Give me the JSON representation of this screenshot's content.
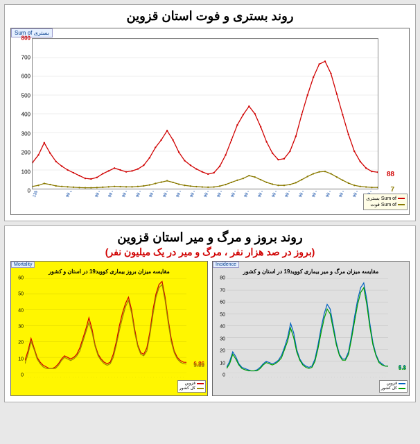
{
  "top_chart": {
    "title": "روند بستری و فوت استان قزوین",
    "tab_label": "Sum of بستری",
    "type": "line",
    "background_color": "#ffffff",
    "border_color": "#888888",
    "y_axis": {
      "min": 0,
      "max": 800,
      "step": 100,
      "label_color": "#c00000",
      "max_label": "800"
    },
    "series": [
      {
        "name": "بستری",
        "legend_label": "Sum of بستری",
        "color": "#d00000",
        "marker": "dot",
        "end_value": 88,
        "end_label": "88",
        "end_label_color": "#d00000",
        "values": [
          140,
          180,
          245,
          190,
          145,
          120,
          100,
          85,
          70,
          55,
          52,
          60,
          80,
          95,
          110,
          100,
          90,
          95,
          105,
          125,
          165,
          220,
          260,
          310,
          260,
          195,
          150,
          125,
          105,
          90,
          78,
          85,
          120,
          180,
          260,
          340,
          395,
          440,
          400,
          330,
          250,
          190,
          155,
          160,
          200,
          280,
          395,
          500,
          595,
          665,
          680,
          615,
          505,
          395,
          290,
          200,
          145,
          110,
          92,
          88
        ]
      },
      {
        "name": "فوت",
        "legend_label": "Sum of فوت",
        "color": "#8a7a00",
        "marker": "dot",
        "end_value": 7,
        "end_label": "7",
        "end_label_color": "#8a7a00",
        "values": [
          12,
          18,
          28,
          22,
          15,
          12,
          10,
          8,
          6,
          5,
          5,
          6,
          8,
          10,
          12,
          11,
          10,
          10,
          12,
          15,
          20,
          28,
          35,
          42,
          34,
          24,
          18,
          14,
          11,
          9,
          8,
          9,
          14,
          22,
          34,
          45,
          55,
          70,
          62,
          48,
          34,
          24,
          18,
          18,
          22,
          32,
          48,
          65,
          80,
          90,
          92,
          80,
          62,
          45,
          30,
          18,
          12,
          9,
          7,
          7
        ]
      }
    ],
    "x_categories": [
      "هفته 5 اسفند 1398",
      "هفته فروردین 99",
      "هفته 99",
      "هفته 99",
      "هفته 99",
      "هفته 99",
      "هفته 99",
      "هفته 99",
      "هفته 99",
      "هفته 99",
      "هفته 99",
      "هفته 99",
      "هفته 99",
      "هفته 99",
      "هفته 99",
      "هفته 99",
      "هفته 99",
      "هفته 99",
      "هفته 99",
      "هفته 99",
      "هفته 99",
      "هفته 99",
      "هفته 99",
      "هفته 99",
      "هفته 99",
      "هفته 99",
      "هفته 99",
      "هفته 99",
      "هفته 99",
      "هفته 99",
      "هفته 99",
      "هفته 99",
      "هفته 1400",
      "هفته 1400",
      "هفته 1400",
      "هفته 1400",
      "هفته 1400",
      "هفته 1400",
      "هفته 1400",
      "هفته 1400",
      "هفته 1400",
      "هفته 1400",
      "هفته 1400",
      "هفته 1400",
      "هفته 1400",
      "هفته 1400",
      "هفته 1400",
      "هفته 1400",
      "هفته 1400",
      "هفته 1400",
      "هفته 1400",
      "هفته 1400",
      "هفته 1400",
      "هفته 1400",
      "هفته 1400",
      "هفته 1400",
      "هفته 1400",
      "هفته 1400",
      "هفته آبان 1400",
      "هفته 2 آبان 1400"
    ],
    "x_label_color": "#0040a0",
    "legend_background": "#fffde6"
  },
  "bottom_section": {
    "title": "روند بروز و مرگ و میر استان قزوین",
    "subtitle": "(بروز در صد هزار نفر ، مرگ و میر در یک میلیون نفر)"
  },
  "bottom_left": {
    "tab_label": "Mortality",
    "title": "مقایسه میزان بروز بیماری کووید19 در استان و کشور",
    "background_color": "#fff600",
    "type": "line",
    "y_axis": {
      "min": 0,
      "max": 60,
      "step": 10
    },
    "series": [
      {
        "name": "قزوین",
        "color": "#d00000",
        "end_value": 6.86,
        "end_label": "6.86",
        "values": [
          8,
          14,
          22,
          16,
          10,
          7,
          5,
          4,
          3,
          3,
          4,
          6,
          9,
          11,
          10,
          9,
          10,
          12,
          16,
          22,
          28,
          35,
          28,
          18,
          12,
          9,
          7,
          6,
          7,
          12,
          20,
          30,
          38,
          44,
          48,
          40,
          28,
          18,
          13,
          12,
          16,
          26,
          40,
          50,
          56,
          58,
          48,
          34,
          22,
          14,
          10,
          8,
          7,
          6.86
        ]
      },
      {
        "name": "کل کشور",
        "color": "#9a8a00",
        "end_value": 5.83,
        "end_label": "5.83",
        "values": [
          6,
          12,
          20,
          15,
          9,
          6,
          4,
          3,
          3,
          3,
          3,
          5,
          8,
          10,
          9,
          8,
          9,
          11,
          14,
          20,
          26,
          32,
          26,
          17,
          11,
          8,
          6,
          5,
          6,
          10,
          18,
          27,
          35,
          42,
          46,
          38,
          26,
          17,
          12,
          11,
          14,
          24,
          37,
          48,
          54,
          56,
          46,
          32,
          20,
          13,
          9,
          7,
          6,
          5.83
        ]
      }
    ],
    "x_categories": [
      "",
      "",
      "",
      "",
      "",
      "",
      "",
      "",
      "",
      "",
      "",
      "",
      "",
      "",
      "",
      "",
      "",
      "",
      "",
      "",
      "",
      "",
      "",
      "",
      "",
      "",
      "",
      "",
      "",
      "",
      "",
      "",
      "",
      "",
      "",
      "",
      "",
      "",
      "",
      "",
      "",
      "",
      "",
      "",
      "",
      "",
      "",
      "",
      "",
      "",
      "",
      "",
      "",
      ""
    ],
    "legend_background": "#ffffff"
  },
  "bottom_right": {
    "tab_label": "Incidence",
    "title": "مقایسه میزان مرگ و میر بیماری کووید19 در استان و کشور",
    "background_color": "#e0e0e0",
    "type": "line",
    "y_axis": {
      "min": 0,
      "max": 80,
      "step": 10
    },
    "series": [
      {
        "name": "قزوین",
        "color": "#0060c0",
        "end_value": 6.1,
        "end_label": "6.1",
        "values": [
          5,
          10,
          18,
          14,
          8,
          5,
          4,
          3,
          2,
          2,
          3,
          5,
          8,
          10,
          9,
          8,
          9,
          11,
          15,
          22,
          30,
          42,
          34,
          20,
          12,
          8,
          6,
          5,
          6,
          12,
          24,
          38,
          50,
          58,
          54,
          40,
          26,
          16,
          12,
          12,
          18,
          32,
          48,
          62,
          72,
          76,
          62,
          42,
          26,
          16,
          10,
          8,
          6,
          6.1
        ]
      },
      {
        "name": "کل کشور",
        "color": "#00a000",
        "end_value": 5.8,
        "end_label": "5.8",
        "values": [
          4,
          8,
          16,
          12,
          7,
          4,
          3,
          2,
          2,
          2,
          2,
          4,
          7,
          9,
          8,
          7,
          8,
          10,
          13,
          20,
          27,
          38,
          30,
          18,
          11,
          7,
          5,
          4,
          5,
          10,
          21,
          34,
          46,
          54,
          50,
          37,
          24,
          15,
          11,
          11,
          16,
          29,
          44,
          58,
          68,
          72,
          58,
          39,
          24,
          15,
          9,
          7,
          6,
          5.8
        ]
      }
    ],
    "x_categories": [
      "",
      "",
      "",
      "",
      "",
      "",
      "",
      "",
      "",
      "",
      "",
      "",
      "",
      "",
      "",
      "",
      "",
      "",
      "",
      "",
      "",
      "",
      "",
      "",
      "",
      "",
      "",
      "",
      "",
      "",
      "",
      "",
      "",
      "",
      "",
      "",
      "",
      "",
      "",
      "",
      "",
      "",
      "",
      "",
      "",
      "",
      "",
      "",
      "",
      "",
      "",
      "",
      "",
      ""
    ],
    "legend_background": "#ffffff"
  }
}
